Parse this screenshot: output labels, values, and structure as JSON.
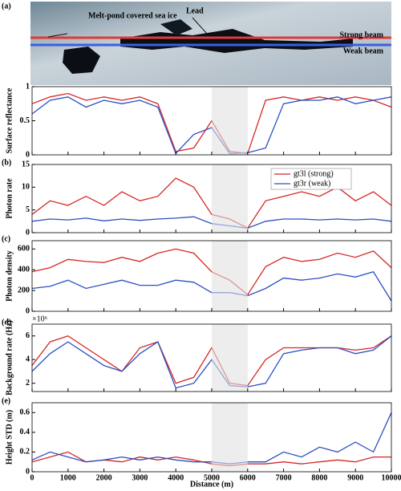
{
  "image_panel": {
    "label": "(a)",
    "annotations": [
      "Melt-pond covered sea ice",
      "Lead",
      "Strong beam",
      "Weak beam"
    ]
  },
  "chart_data": [
    {
      "type": "line",
      "ylabel": "Surface reflectance",
      "xlim": [
        0,
        10000
      ],
      "xticks": [
        0,
        1000,
        2000,
        3000,
        4000,
        5000,
        6000,
        7000,
        8000,
        9000,
        10000
      ],
      "ylim": [
        0,
        1
      ],
      "yticks": [
        0,
        0.5,
        1
      ],
      "shade": [
        5000,
        6000
      ],
      "x": [
        0,
        500,
        1000,
        1500,
        2000,
        2500,
        3000,
        3500,
        4000,
        4500,
        5000,
        5500,
        6000,
        6500,
        7000,
        7500,
        8000,
        8500,
        9000,
        9500,
        10000
      ],
      "series": [
        {
          "name": "gt3l (strong)",
          "color": "#d62728",
          "values": [
            0.75,
            0.85,
            0.9,
            0.8,
            0.85,
            0.8,
            0.85,
            0.75,
            0.05,
            0.1,
            0.5,
            0.05,
            0.02,
            0.8,
            0.85,
            0.8,
            0.85,
            0.8,
            0.85,
            0.8,
            0.7
          ]
        },
        {
          "name": "gt3r (weak)",
          "color": "#2b4fc2",
          "values": [
            0.6,
            0.8,
            0.85,
            0.7,
            0.8,
            0.75,
            0.8,
            0.7,
            0.02,
            0.3,
            0.4,
            0.02,
            0.03,
            0.1,
            0.75,
            0.8,
            0.8,
            0.85,
            0.75,
            0.8,
            0.85
          ]
        }
      ]
    },
    {
      "type": "line",
      "label": "(b)",
      "ylabel": "Photon rate",
      "xlim": [
        0,
        10000
      ],
      "xticks": [
        0,
        1000,
        2000,
        3000,
        4000,
        5000,
        6000,
        7000,
        8000,
        9000,
        10000
      ],
      "ylim": [
        0,
        15
      ],
      "yticks": [
        0,
        5,
        10,
        15
      ],
      "shade": [
        5000,
        6000
      ],
      "legend": "upper right",
      "x": [
        0,
        500,
        1000,
        1500,
        2000,
        2500,
        3000,
        3500,
        4000,
        4500,
        5000,
        5500,
        6000,
        6500,
        7000,
        7500,
        8000,
        8500,
        9000,
        9500,
        10000
      ],
      "series": [
        {
          "name": "gt3l (strong)",
          "color": "#d62728",
          "values": [
            4,
            7,
            6,
            8,
            6,
            9,
            7,
            8,
            12,
            10,
            4,
            3,
            1,
            7,
            8,
            9,
            8,
            10,
            7,
            9,
            6
          ]
        },
        {
          "name": "gt3r (weak)",
          "color": "#2b4fc2",
          "values": [
            2.5,
            3,
            2.8,
            3.2,
            2.6,
            3,
            2.7,
            3,
            3.2,
            3.5,
            2,
            1.5,
            1,
            2.5,
            3,
            3,
            2.8,
            3,
            2.8,
            3,
            2.5
          ]
        }
      ]
    },
    {
      "type": "line",
      "label": "(c)",
      "ylabel": "Photon density",
      "xlim": [
        0,
        10000
      ],
      "xticks": [
        0,
        1000,
        2000,
        3000,
        4000,
        5000,
        6000,
        7000,
        8000,
        9000,
        10000
      ],
      "ylim": [
        0,
        680
      ],
      "yticks": [
        0,
        200,
        400,
        600
      ],
      "shade": [
        5000,
        6000
      ],
      "x": [
        0,
        500,
        1000,
        1500,
        2000,
        2500,
        3000,
        3500,
        4000,
        4500,
        5000,
        5500,
        6000,
        6500,
        7000,
        7500,
        8000,
        8500,
        9000,
        9500,
        10000
      ],
      "series": [
        {
          "name": "gt3l (strong)",
          "color": "#d62728",
          "values": [
            380,
            420,
            500,
            480,
            470,
            520,
            480,
            560,
            600,
            560,
            380,
            300,
            160,
            430,
            520,
            480,
            500,
            560,
            520,
            580,
            420
          ]
        },
        {
          "name": "gt3r (weak)",
          "color": "#2b4fc2",
          "values": [
            220,
            240,
            300,
            220,
            260,
            300,
            250,
            250,
            300,
            280,
            180,
            180,
            150,
            220,
            320,
            300,
            320,
            360,
            330,
            380,
            100
          ]
        }
      ]
    },
    {
      "type": "line",
      "label": "(d)",
      "ylabel": "Background rate (Hz)",
      "y_multiplier": "×10⁶",
      "xlim": [
        0,
        10000
      ],
      "xticks": [
        0,
        1000,
        2000,
        3000,
        4000,
        5000,
        6000,
        7000,
        8000,
        9000,
        10000
      ],
      "ylim": [
        1.3,
        7
      ],
      "yticks": [
        2,
        4,
        6
      ],
      "shade": [
        5000,
        6000
      ],
      "x": [
        0,
        500,
        1000,
        1500,
        2000,
        2500,
        3000,
        3500,
        4000,
        4500,
        5000,
        5500,
        6000,
        6500,
        7000,
        7500,
        8000,
        8500,
        9000,
        9500,
        10000
      ],
      "series": [
        {
          "name": "gt3l (strong)",
          "color": "#d62728",
          "values": [
            3.5,
            5.5,
            6,
            5,
            4,
            3,
            5,
            5.5,
            2,
            2.5,
            5,
            2,
            1.8,
            4,
            5,
            5,
            5,
            5,
            4.8,
            5,
            6
          ]
        },
        {
          "name": "gt3r (weak)",
          "color": "#2b4fc2",
          "values": [
            3,
            4.5,
            5.5,
            4.5,
            3.5,
            3,
            4.5,
            5.5,
            1.6,
            2,
            4,
            1.8,
            1.7,
            2,
            4.5,
            4.8,
            5,
            5,
            4.5,
            4.8,
            6
          ]
        }
      ]
    },
    {
      "type": "line",
      "label": "(e)",
      "ylabel": "Height STD (m)",
      "xlabel": "Distance (m)",
      "xlim": [
        0,
        10000
      ],
      "xticks": [
        0,
        1000,
        2000,
        3000,
        4000,
        5000,
        6000,
        7000,
        8000,
        9000,
        10000
      ],
      "ylim": [
        0,
        0.7
      ],
      "yticks": [
        0,
        0.2,
        0.4,
        0.6
      ],
      "shade": [
        5000,
        6000
      ],
      "x": [
        0,
        500,
        1000,
        1500,
        2000,
        2500,
        3000,
        3500,
        4000,
        4500,
        5000,
        5500,
        6000,
        6500,
        7000,
        7500,
        8000,
        8500,
        9000,
        9500,
        10000
      ],
      "series": [
        {
          "name": "gt3l (strong)",
          "color": "#d62728",
          "values": [
            0.1,
            0.15,
            0.2,
            0.1,
            0.12,
            0.1,
            0.15,
            0.12,
            0.15,
            0.12,
            0.08,
            0.06,
            0.08,
            0.08,
            0.1,
            0.08,
            0.1,
            0.12,
            0.1,
            0.15,
            0.15
          ]
        },
        {
          "name": "gt3r (weak)",
          "color": "#2b4fc2",
          "values": [
            0.12,
            0.2,
            0.15,
            0.1,
            0.12,
            0.15,
            0.12,
            0.15,
            0.12,
            0.1,
            0.1,
            0.08,
            0.1,
            0.1,
            0.2,
            0.15,
            0.25,
            0.2,
            0.3,
            0.2,
            0.6
          ]
        }
      ]
    }
  ]
}
